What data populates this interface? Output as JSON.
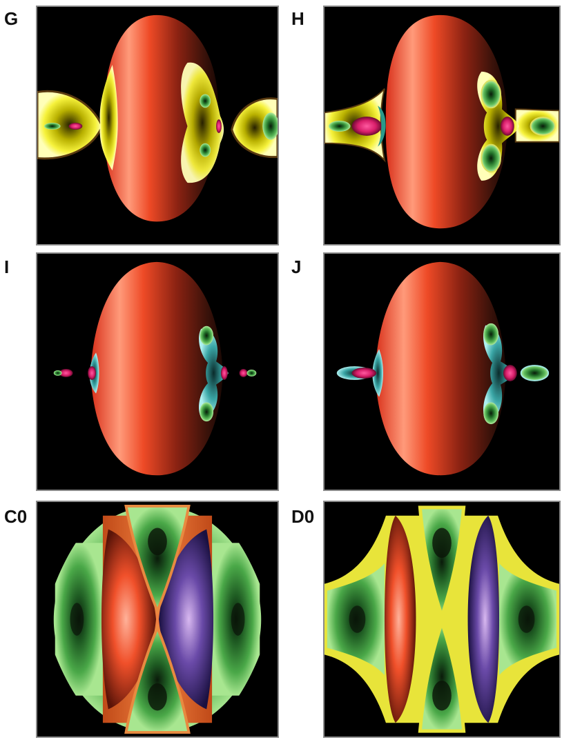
{
  "figure": {
    "panels": [
      {
        "id": "G",
        "label": "G"
      },
      {
        "id": "H",
        "label": "H"
      },
      {
        "id": "I",
        "label": "I"
      },
      {
        "id": "J",
        "label": "J"
      },
      {
        "id": "C0",
        "label": "C0"
      },
      {
        "id": "D0",
        "label": "D0"
      }
    ]
  }
}
